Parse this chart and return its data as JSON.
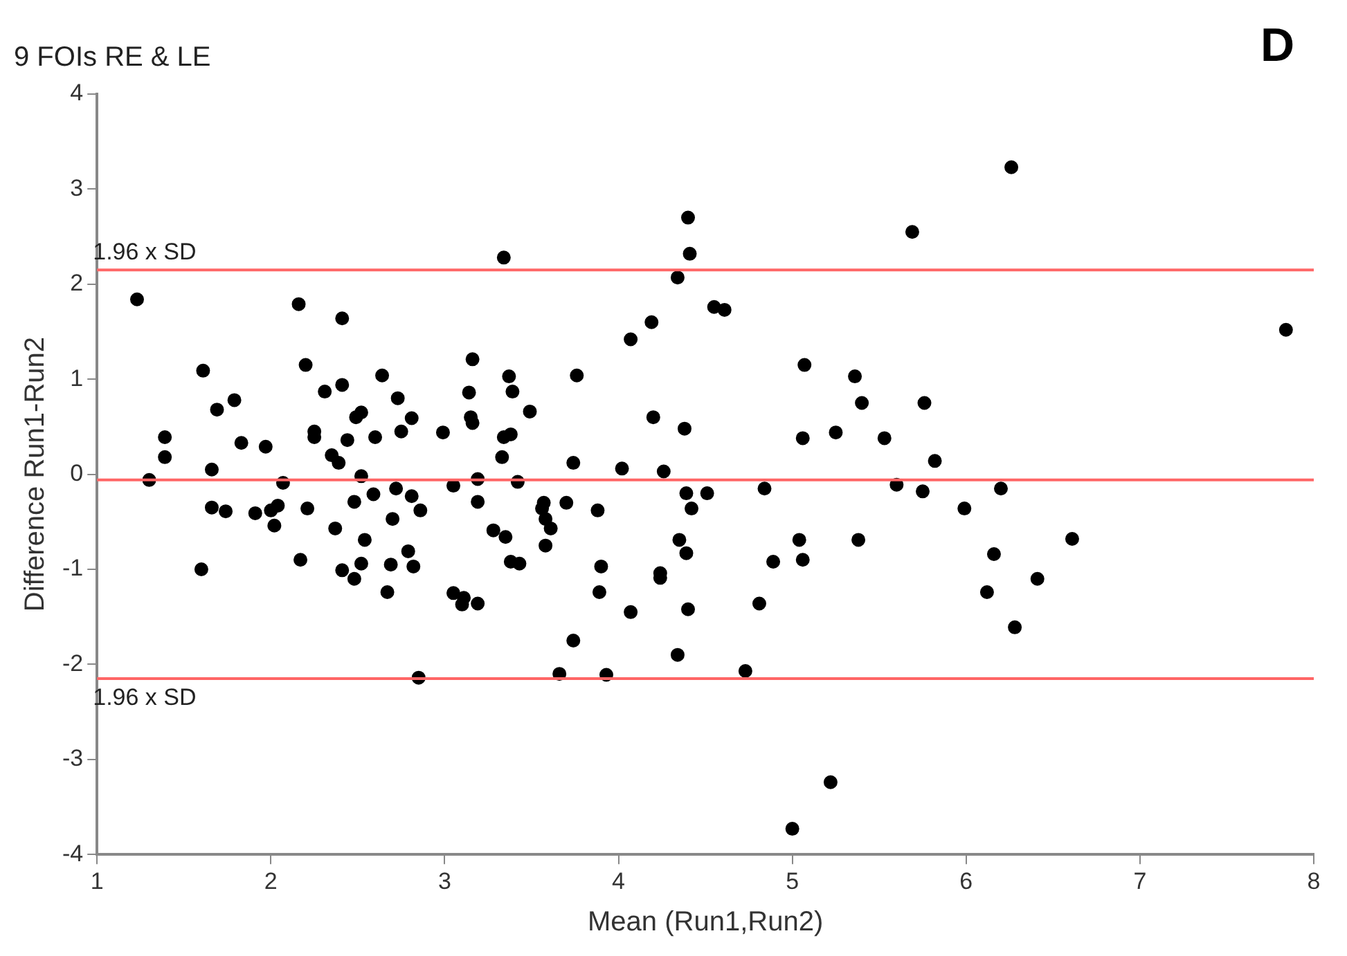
{
  "chart_data": {
    "type": "scatter",
    "title": "9 FOIs RE & LE",
    "xlabel": "Mean (Run1,Run2)",
    "ylabel": "Difference Run1-Run2",
    "annotations": [
      "D"
    ],
    "xlim": [
      1,
      8
    ],
    "xticks": [
      1,
      2,
      3,
      4,
      5,
      6,
      7,
      8
    ],
    "ylim": [
      -4,
      4
    ],
    "yticks": [
      -4,
      -3,
      -2,
      -1,
      0,
      1,
      2,
      3,
      4
    ],
    "grid": false,
    "legend": false,
    "marker": "circle",
    "ref_lines": [
      {
        "axis": "y",
        "value": 2.15,
        "label": "1.96 x SD",
        "color": "#ff6666"
      },
      {
        "axis": "y",
        "value": -0.06,
        "color": "#ff6666"
      },
      {
        "axis": "y",
        "value": -2.15,
        "label": "1.96 x SD",
        "color": "#ff6666"
      }
    ],
    "series": [
      {
        "color": "#000000",
        "x": [
          1.23,
          1.3,
          1.39,
          1.39,
          1.61,
          1.66,
          1.6,
          1.66,
          1.74,
          1.69,
          1.79,
          1.83,
          1.97,
          1.91,
          2.0,
          2.04,
          2.07,
          2.02,
          2.16,
          2.2,
          2.17,
          2.21,
          2.25,
          2.25,
          2.31,
          2.35,
          2.39,
          2.37,
          2.41,
          2.41,
          2.49,
          2.52,
          2.44,
          2.52,
          2.48,
          2.54,
          2.52,
          2.41,
          2.48,
          2.6,
          2.59,
          2.64,
          2.73,
          2.75,
          2.81,
          2.72,
          2.81,
          2.7,
          2.79,
          2.69,
          2.82,
          2.67,
          2.85,
          2.86,
          2.99,
          3.05,
          3.16,
          3.14,
          3.15,
          3.16,
          3.19,
          3.19,
          3.28,
          3.35,
          3.05,
          3.11,
          3.1,
          3.19,
          3.34,
          3.37,
          3.39,
          3.49,
          3.34,
          3.38,
          3.33,
          3.42,
          3.38,
          3.43,
          3.57,
          3.56,
          3.58,
          3.61,
          3.58,
          3.66,
          3.74,
          3.74,
          3.76,
          3.7,
          3.88,
          3.9,
          3.89,
          3.93,
          4.02,
          4.07,
          4.07,
          4.19,
          4.2,
          4.26,
          4.24,
          4.24,
          4.34,
          4.34,
          4.4,
          4.41,
          4.38,
          4.39,
          4.42,
          4.35,
          4.39,
          4.4,
          4.51,
          4.55,
          4.61,
          4.73,
          4.81,
          4.84,
          4.89,
          5.06,
          5.04,
          5.06,
          5.07,
          5.0,
          5.22,
          5.25,
          5.36,
          5.4,
          5.38,
          5.53,
          5.6,
          5.69,
          5.76,
          5.75,
          5.82,
          5.99,
          6.12,
          6.16,
          6.2,
          6.26,
          6.28,
          6.41,
          6.61,
          7.84
        ],
        "values": [
          1.84,
          -0.06,
          0.39,
          0.18,
          1.09,
          0.05,
          -1.0,
          -0.35,
          -0.39,
          0.68,
          0.78,
          0.33,
          0.29,
          -0.41,
          -0.38,
          -0.33,
          -0.09,
          -0.54,
          1.79,
          1.15,
          -0.9,
          -0.36,
          0.45,
          0.39,
          0.87,
          0.2,
          0.12,
          -0.57,
          0.94,
          1.64,
          0.6,
          0.65,
          0.36,
          -0.02,
          -0.29,
          -0.69,
          -0.94,
          -1.01,
          -1.1,
          0.39,
          -0.21,
          1.04,
          0.8,
          0.45,
          0.59,
          -0.15,
          -0.23,
          -0.47,
          -0.81,
          -0.95,
          -0.97,
          -1.24,
          -2.14,
          -0.38,
          0.44,
          -0.12,
          1.21,
          0.86,
          0.6,
          0.54,
          -0.05,
          -0.29,
          -0.59,
          -0.66,
          -1.25,
          -1.3,
          -1.37,
          -1.36,
          2.28,
          1.03,
          0.87,
          0.66,
          0.39,
          0.42,
          0.18,
          -0.08,
          -0.92,
          -0.94,
          -0.3,
          -0.36,
          -0.47,
          -0.57,
          -0.75,
          -2.1,
          -1.75,
          0.12,
          1.04,
          -0.3,
          -0.38,
          -0.97,
          -1.24,
          -2.11,
          0.06,
          -1.45,
          1.42,
          1.6,
          0.6,
          0.03,
          -1.04,
          -1.09,
          -1.9,
          2.07,
          2.7,
          2.32,
          0.48,
          -0.2,
          -0.36,
          -0.69,
          -0.83,
          -1.42,
          -0.2,
          1.76,
          1.73,
          -2.07,
          -1.36,
          -0.15,
          -0.92,
          0.38,
          -0.69,
          -0.9,
          1.15,
          -3.73,
          -3.24,
          0.44,
          1.03,
          0.75,
          -0.69,
          0.38,
          -0.11,
          2.55,
          0.75,
          -0.18,
          0.14,
          -0.36,
          -1.24,
          -0.84,
          -0.15,
          3.23,
          -1.61,
          -1.1,
          -0.68,
          1.52
        ]
      }
    ]
  }
}
